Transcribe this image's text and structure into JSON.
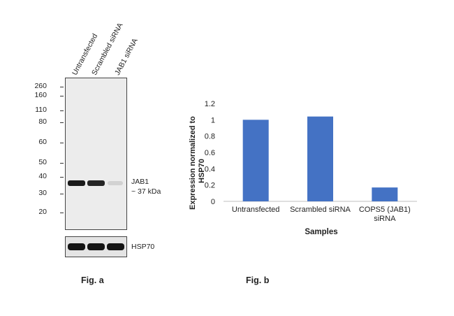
{
  "figure_a": {
    "caption": "Fig. a",
    "lanes": [
      "Untransfected",
      "Scrambled siRNA",
      "JAB1 siRNA"
    ],
    "mw_markers": [
      "260",
      "160",
      "110",
      "80",
      "60",
      "50",
      "40",
      "30",
      "20"
    ],
    "band_label_line1": "JAB1",
    "band_label_line2": "~ 37 kDa",
    "loading_control": "HSP70",
    "band_intensity": [
      1.0,
      0.95,
      0.12
    ],
    "band_color": "#1a1a1a"
  },
  "figure_b": {
    "caption": "Fig. b"
  },
  "chart_data": {
    "type": "bar",
    "categories": [
      "Untransfected",
      "Scrambled siRNA",
      "COPS5 (JAB1) siRNA"
    ],
    "values": [
      1.0,
      1.04,
      0.17
    ],
    "title": "",
    "xlabel": "Samples",
    "ylabel": "Expression normalized to HSP70",
    "ylim": [
      0,
      1.2
    ],
    "yticks": [
      "0",
      "0.2",
      "0.4",
      "0.6",
      "0.8",
      "1",
      "1.2"
    ],
    "bar_color": "#4472c4",
    "grid": false,
    "legend": "none"
  }
}
